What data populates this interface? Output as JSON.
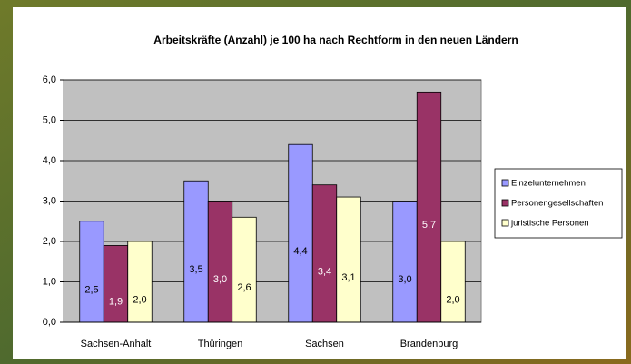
{
  "chart_data": {
    "type": "bar",
    "title": "Arbeitskräfte (Anzahl) je 100 ha nach Rechtform in den neuen Ländern",
    "categories": [
      "Sachsen-Anhalt",
      "Thüringen",
      "Sachsen",
      "Brandenburg"
    ],
    "series": [
      {
        "name": "Einzelunternehmen",
        "color": "#9999ff",
        "values": [
          2.5,
          3.5,
          4.4,
          3.0
        ],
        "value_labels": [
          "2,5",
          "3,5",
          "4,4",
          "3,0"
        ]
      },
      {
        "name": "Personengesellschaften",
        "color": "#993366",
        "values": [
          1.9,
          3.0,
          3.4,
          5.7
        ],
        "value_labels": [
          "1,9",
          "3,0",
          "3,4",
          "5,7"
        ]
      },
      {
        "name": "juristische Personen",
        "color": "#ffffcc",
        "values": [
          2.0,
          2.6,
          3.1,
          2.0
        ],
        "value_labels": [
          "2,0",
          "2,6",
          "3,1",
          "2,0"
        ]
      }
    ],
    "ylim": [
      0,
      6
    ],
    "yticks": [
      {
        "value": 0,
        "label": "0,0"
      },
      {
        "value": 1,
        "label": "1,0"
      },
      {
        "value": 2,
        "label": "2,0"
      },
      {
        "value": 3,
        "label": "3,0"
      },
      {
        "value": 4,
        "label": "4,0"
      },
      {
        "value": 5,
        "label": "5,0"
      },
      {
        "value": 6,
        "label": "6,0"
      }
    ],
    "grid": true,
    "legend": "right"
  }
}
